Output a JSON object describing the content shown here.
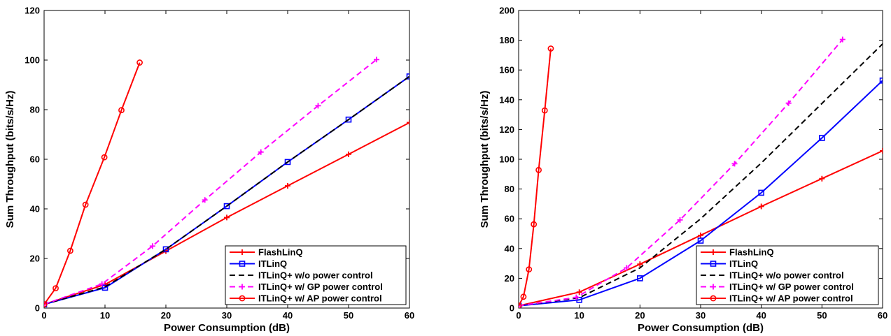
{
  "colors": {
    "flashlinq": "#ff0000",
    "itlinq": "#0000ff",
    "wo": "#000000",
    "gp": "#ff00ff",
    "ap": "#ff0000"
  },
  "chart_data": [
    {
      "type": "line",
      "xlabel": "Power Consumption (dB)",
      "ylabel": "Sum Throughput (bits/s/Hz)",
      "xlim": [
        0,
        60
      ],
      "ylim": [
        0,
        120
      ],
      "xticks": [
        0,
        10,
        20,
        30,
        40,
        50,
        60
      ],
      "yticks": [
        0,
        20,
        40,
        60,
        80,
        100,
        120
      ],
      "grid": false,
      "legend_position": "bottom-right",
      "series": [
        {
          "name": "FlashLinQ",
          "key": "flashlinq",
          "style": "solid",
          "marker": "plus",
          "x": [
            0,
            10,
            20,
            30,
            40,
            50,
            60
          ],
          "y": [
            1.5,
            9.5,
            23,
            36.5,
            49.3,
            62,
            74.8
          ]
        },
        {
          "name": "ITLinQ",
          "key": "itlinq",
          "style": "solid",
          "marker": "square",
          "x": [
            0,
            10,
            20,
            30,
            40,
            50,
            60
          ],
          "y": [
            1.5,
            8.2,
            23.7,
            41.1,
            58.9,
            76,
            93.4
          ]
        },
        {
          "name": "ITLinQ+ w/o power control",
          "key": "wo",
          "style": "dashed",
          "marker": "none",
          "x": [
            0,
            10,
            20,
            30,
            40,
            50,
            60
          ],
          "y": [
            1.5,
            8.5,
            23.7,
            41.1,
            58.9,
            76,
            93.4
          ]
        },
        {
          "name": "ITLinQ+ w/ GP power control",
          "key": "gp",
          "style": "dashed",
          "marker": "plus",
          "x": [
            0,
            9.5,
            17.8,
            26.4,
            35.6,
            45,
            54.6
          ],
          "y": [
            1.5,
            9.7,
            25,
            43.6,
            62.9,
            81.6,
            100.2
          ]
        },
        {
          "name": "ITLinQ+ w/ AP power control",
          "key": "ap",
          "style": "solid",
          "marker": "circle",
          "x": [
            0,
            1.9,
            4.3,
            6.8,
            9.9,
            12.7,
            15.7
          ],
          "y": [
            1.5,
            8,
            23.1,
            41.7,
            60.8,
            79.8,
            99
          ]
        }
      ]
    },
    {
      "type": "line",
      "xlabel": "Power Consumption (dB)",
      "ylabel": "Sum Throughput (bits/s/Hz)",
      "xlim": [
        0,
        60
      ],
      "ylim": [
        0,
        200
      ],
      "xticks": [
        0,
        10,
        20,
        30,
        40,
        50,
        60
      ],
      "yticks": [
        0,
        20,
        40,
        60,
        80,
        100,
        120,
        140,
        160,
        180,
        200
      ],
      "grid": false,
      "legend_position": "bottom-right",
      "series": [
        {
          "name": "FlashLinQ",
          "key": "flashlinq",
          "style": "solid",
          "marker": "plus",
          "x": [
            0,
            10,
            20,
            30,
            40,
            50,
            60
          ],
          "y": [
            1.5,
            10.7,
            29.5,
            48.9,
            68.3,
            87,
            105.7
          ]
        },
        {
          "name": "ITLinQ",
          "key": "itlinq",
          "style": "solid",
          "marker": "square",
          "x": [
            0,
            10,
            20,
            30,
            40,
            50,
            60
          ],
          "y": [
            1.5,
            5.5,
            20,
            45.3,
            77.5,
            114.3,
            152.9
          ]
        },
        {
          "name": "ITLinQ+ w/o power control",
          "key": "wo",
          "style": "dashed",
          "marker": "none",
          "x": [
            0,
            10,
            20,
            30,
            40,
            50,
            60
          ],
          "y": [
            1.5,
            7,
            27,
            60,
            97.5,
            137.5,
            177.5
          ]
        },
        {
          "name": "ITLinQ+ w/ GP power control",
          "key": "gp",
          "style": "dashed",
          "marker": "plus",
          "x": [
            0,
            9.5,
            17.8,
            26.6,
            35.6,
            44.5,
            53.4
          ],
          "y": [
            1.5,
            7.2,
            27,
            59.2,
            97,
            137.7,
            180.5
          ]
        },
        {
          "name": "ITLinQ+ w/ AP power control",
          "key": "ap",
          "style": "solid",
          "marker": "circle",
          "x": [
            0,
            0.8,
            1.7,
            2.5,
            3.3,
            4.3,
            5.3
          ],
          "y": [
            1.5,
            7.6,
            26,
            56.3,
            92.8,
            132.8,
            174.4
          ]
        }
      ]
    }
  ]
}
